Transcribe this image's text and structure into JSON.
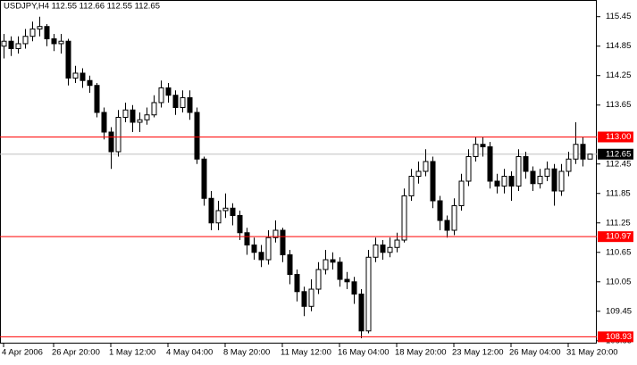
{
  "chart_data": {
    "type": "candlestick",
    "title": "USDJPY,H4  112.55 112.66 112.55 112.65",
    "open": [
      114.85,
      114.95,
      114.8,
      114.9,
      115.05,
      115.2,
      115.25,
      115.0,
      114.9,
      114.95,
      114.2,
      114.3,
      114.15,
      114.05,
      113.5,
      113.1,
      112.7,
      113.4,
      113.55,
      113.3,
      113.35,
      113.45,
      113.7,
      114.0,
      113.85,
      113.6,
      113.8,
      113.5,
      112.55,
      111.75,
      111.25,
      111.5,
      111.55,
      111.4,
      111.05,
      110.8,
      110.65,
      110.5,
      110.95,
      111.1,
      110.6,
      110.2,
      109.85,
      109.55,
      109.9,
      110.3,
      110.5,
      110.45,
      110.1,
      110.05,
      109.8,
      109.05,
      110.55,
      110.8,
      110.65,
      110.75,
      110.9,
      111.8,
      112.2,
      112.3,
      112.5,
      111.7,
      111.3,
      111.1,
      111.6,
      112.1,
      112.6,
      112.85,
      112.8,
      112.1,
      112.0,
      112.2,
      112.0,
      112.6,
      112.3,
      112.05,
      112.2,
      112.35,
      111.9,
      112.3,
      112.55,
      112.85,
      112.55
    ],
    "high": [
      115.1,
      115.05,
      115.05,
      115.2,
      115.35,
      115.45,
      115.3,
      115.1,
      115.1,
      115.0,
      114.45,
      114.4,
      114.25,
      114.1,
      113.6,
      113.2,
      113.55,
      113.7,
      113.65,
      113.5,
      113.6,
      113.85,
      114.15,
      114.1,
      113.95,
      113.95,
      113.95,
      113.6,
      112.6,
      111.9,
      111.7,
      111.85,
      111.65,
      111.5,
      111.15,
      110.95,
      110.8,
      111.1,
      111.3,
      111.15,
      110.7,
      110.3,
      109.95,
      110.1,
      110.45,
      110.7,
      110.65,
      110.55,
      110.25,
      110.15,
      109.9,
      110.7,
      110.95,
      110.9,
      110.95,
      111.05,
      111.95,
      112.35,
      112.5,
      112.75,
      112.6,
      111.8,
      111.4,
      111.75,
      112.25,
      112.75,
      113.0,
      113.0,
      112.9,
      112.25,
      112.35,
      112.3,
      112.75,
      112.7,
      112.4,
      112.35,
      112.5,
      112.45,
      112.45,
      112.7,
      113.3,
      113.0,
      112.66
    ],
    "low": [
      114.6,
      114.65,
      114.7,
      114.8,
      114.95,
      115.05,
      114.85,
      114.75,
      114.7,
      114.05,
      114.1,
      114.0,
      113.9,
      113.4,
      112.95,
      112.35,
      112.6,
      113.3,
      113.1,
      113.1,
      113.25,
      113.4,
      113.6,
      113.7,
      113.45,
      113.5,
      113.35,
      112.45,
      111.6,
      111.1,
      111.1,
      111.35,
      111.2,
      110.9,
      110.6,
      110.5,
      110.35,
      110.4,
      110.85,
      110.45,
      110.0,
      109.65,
      109.35,
      109.45,
      109.8,
      110.2,
      110.3,
      109.95,
      109.9,
      109.6,
      108.9,
      109.0,
      110.45,
      110.5,
      110.55,
      110.65,
      110.85,
      111.7,
      112.05,
      112.2,
      111.55,
      111.1,
      110.95,
      111.0,
      111.5,
      112.0,
      112.5,
      112.6,
      111.95,
      111.85,
      111.85,
      111.7,
      111.9,
      112.15,
      111.9,
      111.95,
      112.1,
      111.6,
      111.8,
      112.2,
      112.45,
      112.4,
      112.55
    ],
    "close": [
      114.95,
      114.8,
      114.9,
      115.05,
      115.2,
      115.25,
      115.0,
      114.9,
      114.95,
      114.2,
      114.3,
      114.15,
      114.05,
      113.5,
      113.1,
      112.7,
      113.4,
      113.55,
      113.3,
      113.35,
      113.45,
      113.7,
      114.0,
      113.85,
      113.6,
      113.8,
      113.5,
      112.55,
      111.75,
      111.25,
      111.5,
      111.55,
      111.4,
      111.05,
      110.8,
      110.65,
      110.5,
      110.95,
      111.1,
      110.6,
      110.2,
      109.85,
      109.55,
      109.9,
      110.3,
      110.5,
      110.45,
      110.1,
      110.05,
      109.8,
      109.05,
      110.55,
      110.8,
      110.65,
      110.75,
      110.9,
      111.8,
      112.2,
      112.3,
      112.5,
      111.7,
      111.3,
      111.1,
      111.6,
      112.1,
      112.6,
      112.85,
      112.8,
      112.1,
      112.0,
      112.2,
      112.0,
      112.6,
      112.3,
      112.05,
      112.2,
      112.35,
      111.9,
      112.3,
      112.55,
      112.85,
      112.55,
      112.65
    ],
    "ylim": [
      108.81,
      115.79
    ],
    "yticks": [
      115.45,
      114.85,
      114.25,
      113.65,
      112.45,
      111.85,
      111.25,
      110.65,
      110.05,
      109.45,
      108.85
    ],
    "xticks": [
      {
        "value": 0,
        "label": "4 Apr 2006"
      },
      {
        "value": 7,
        "label": "26 Apr 20:00"
      },
      {
        "value": 15,
        "label": "1 May 12:00"
      },
      {
        "value": 23,
        "label": "4 May 04:00"
      },
      {
        "value": 31,
        "label": "8 May 20:00"
      },
      {
        "value": 39,
        "label": "11 May 12:00"
      },
      {
        "value": 47,
        "label": "16 May 04:00"
      },
      {
        "value": 55,
        "label": "18 May 20:00"
      },
      {
        "value": 63,
        "label": "23 May 12:00"
      },
      {
        "value": 71,
        "label": "26 May 04:00"
      },
      {
        "value": 79,
        "label": "31 May 20:00"
      }
    ],
    "hlines": [
      {
        "value": 113.0,
        "label": "113.00",
        "color": "#ff0000"
      },
      {
        "value": 110.97,
        "label": "110.97",
        "color": "#ff0000"
      },
      {
        "value": 108.93,
        "label": "108.93",
        "color": "#ff0000"
      }
    ],
    "current_price": 112.65,
    "up_color": "#ffffff",
    "down_color": "#000000"
  }
}
